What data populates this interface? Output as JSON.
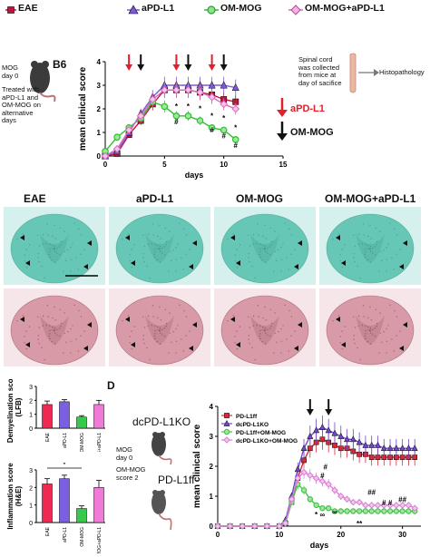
{
  "legend_a": [
    {
      "label": "EAE",
      "color": "#c0143c",
      "marker": "square"
    },
    {
      "label": "aPD-L1",
      "color": "#7b5cd6",
      "marker": "triangle"
    },
    {
      "label": "OM-MOG",
      "color": "#2fbf2f",
      "marker": "circle"
    },
    {
      "label": "OM-MOG+aPD-L1",
      "color": "#d86ab8",
      "marker": "diamond"
    }
  ],
  "schema_a": {
    "mouse_label": "B6",
    "lines": [
      "MOG",
      "day 0",
      "",
      "Treated with",
      "aPD-L1 and",
      "OM-MOG on",
      "alternative",
      "days"
    ]
  },
  "arrow_legend": {
    "apdl1": "aPD-L1",
    "ommog": "OM-MOG"
  },
  "spinal_note": {
    "lines": [
      "Spinal cord",
      "was collected",
      "from mice at",
      "day of sacifice"
    ],
    "target": "Histopathology"
  },
  "histo_labels": [
    "EAE",
    "aPD-L1",
    "OM-MOG",
    "OM-MOG+aPD-L1"
  ],
  "bar_charts": [
    {
      "ylabel": [
        "Demyelination score",
        "(LFB)"
      ],
      "categories": [
        "EAE",
        "aPD-L1",
        "OM-MOG",
        "OM-MOG+aPD-L1"
      ],
      "values": [
        1.7,
        1.9,
        0.8,
        1.7
      ],
      "errors": [
        0.25,
        0.15,
        0.1,
        0.3
      ],
      "yticks": [
        "0",
        "1",
        "2",
        "3"
      ],
      "colors": [
        "#ee2a53",
        "#7a5fe0",
        "#36c94c",
        "#f07ad8"
      ],
      "star": ""
    },
    {
      "ylabel": [
        "Inflammation score",
        "(H&E)"
      ],
      "categories": [
        "EAE",
        "aPD-L1",
        "OM-MOG",
        "OM-MOG+aPD-L1"
      ],
      "values": [
        2.2,
        2.5,
        0.8,
        2.0
      ],
      "errors": [
        0.3,
        0.2,
        0.15,
        0.4
      ],
      "yticks": [
        "0",
        "1",
        "2",
        "3"
      ],
      "colors": [
        "#ee2a53",
        "#7a5fe0",
        "#36c94c",
        "#f07ad8"
      ],
      "star": "*"
    }
  ],
  "panel_d": {
    "panel_letter": "D",
    "mouse_top": "dcPD-L1KO",
    "mouse_bottom": "PD-L1ff",
    "notes": [
      "MOG",
      "day 0",
      "",
      "OM-MOG",
      "score 2"
    ],
    "legend": [
      {
        "label": "PD-L1ff",
        "color": "#d62a3a",
        "marker": "square"
      },
      {
        "label": "dcPD-L1KO",
        "color": "#6f49c9",
        "marker": "triangle"
      },
      {
        "label": "PD-L1ff+OM-MOG",
        "color": "#44c24a",
        "marker": "circle"
      },
      {
        "label": "dcPD-L1KO+OM-MOG",
        "color": "#d77fd4",
        "marker": "diamond"
      }
    ]
  },
  "chart_data": [
    {
      "type": "line",
      "title": "",
      "xlabel": "days",
      "ylabel": "mean clinical score",
      "xlim": [
        0,
        15
      ],
      "ylim": [
        0,
        4
      ],
      "xticks": [
        0,
        5,
        10,
        15
      ],
      "yticks": [
        0,
        1,
        2,
        3,
        4
      ],
      "x": [
        0,
        1,
        2,
        3,
        4,
        5,
        6,
        7,
        8,
        9,
        10,
        11
      ],
      "series": [
        {
          "name": "EAE",
          "color": "#c0143c",
          "marker": "square",
          "values": [
            0,
            0.1,
            0.9,
            1.5,
            2.2,
            2.8,
            2.8,
            2.8,
            2.7,
            2.6,
            2.4,
            2.3
          ]
        },
        {
          "name": "aPD-L1",
          "color": "#7b5cd6",
          "marker": "triangle",
          "values": [
            0,
            0.2,
            1.0,
            1.8,
            2.5,
            3.0,
            3.0,
            3.0,
            3.0,
            3.0,
            3.0,
            2.9
          ]
        },
        {
          "name": "OM-MOG",
          "color": "#2fbf2f",
          "marker": "circle",
          "values": [
            0.2,
            0.8,
            1.2,
            1.6,
            2.3,
            2.1,
            1.7,
            1.7,
            1.5,
            1.2,
            1.1,
            0.7
          ]
        },
        {
          "name": "OM-MOG+aPD-L1",
          "color": "#d86ab8",
          "marker": "diamond",
          "values": [
            0,
            0.3,
            1.1,
            1.7,
            2.4,
            2.8,
            2.8,
            2.8,
            2.7,
            2.5,
            2.2,
            2.0
          ]
        }
      ],
      "arrows_red": [
        2,
        6,
        9
      ],
      "arrows_black": [
        3,
        7,
        10
      ],
      "annotations": [
        {
          "x": 6,
          "y": 2.0,
          "text": "*"
        },
        {
          "x": 6,
          "y": 1.35,
          "text": "#"
        },
        {
          "x": 7,
          "y": 2.0,
          "text": "*"
        },
        {
          "x": 8,
          "y": 1.9,
          "text": "*"
        },
        {
          "x": 9,
          "y": 1.6,
          "text": "*"
        },
        {
          "x": 9,
          "y": 1.0,
          "text": "#"
        },
        {
          "x": 10,
          "y": 1.5,
          "text": "*"
        },
        {
          "x": 10,
          "y": 0.75,
          "text": "#"
        },
        {
          "x": 11,
          "y": 1.1,
          "text": "*"
        },
        {
          "x": 11,
          "y": 0.35,
          "text": "#"
        }
      ]
    },
    {
      "type": "line",
      "title": "",
      "xlabel": "days",
      "ylabel": "mean clinical score",
      "xlim": [
        0,
        33
      ],
      "ylim": [
        0,
        4
      ],
      "xticks": [
        0,
        10,
        20,
        30
      ],
      "yticks": [
        0,
        1,
        2,
        3,
        4
      ],
      "x": [
        0,
        2,
        4,
        6,
        8,
        10,
        11,
        12,
        13,
        14,
        15,
        16,
        17,
        18,
        19,
        20,
        21,
        22,
        23,
        24,
        25,
        26,
        27,
        28,
        29,
        30,
        31,
        32
      ],
      "series": [
        {
          "name": "PD-L1ff",
          "color": "#d62a3a",
          "marker": "square",
          "values": [
            0,
            0,
            0,
            0,
            0,
            0,
            0.1,
            0.8,
            1.6,
            2.2,
            2.6,
            2.8,
            2.9,
            2.8,
            2.7,
            2.6,
            2.6,
            2.5,
            2.4,
            2.4,
            2.3,
            2.3,
            2.3,
            2.3,
            2.3,
            2.3,
            2.3,
            2.3
          ]
        },
        {
          "name": "dcPD-L1KO",
          "color": "#6f49c9",
          "marker": "triangle",
          "values": [
            0,
            0,
            0,
            0,
            0,
            0,
            0.2,
            1.0,
            1.9,
            2.6,
            3.0,
            3.2,
            3.3,
            3.2,
            3.1,
            3.0,
            2.9,
            2.9,
            2.8,
            2.7,
            2.7,
            2.7,
            2.6,
            2.6,
            2.6,
            2.6,
            2.6,
            2.6
          ]
        },
        {
          "name": "PD-L1ff+OM-MOG",
          "color": "#44c24a",
          "marker": "circle",
          "values": [
            0,
            0,
            0,
            0,
            0,
            0,
            0.1,
            0.8,
            1.4,
            1.2,
            0.9,
            0.7,
            0.6,
            0.6,
            0.5,
            0.5,
            0.5,
            0.5,
            0.5,
            0.5,
            0.5,
            0.5,
            0.5,
            0.5,
            0.5,
            0.5,
            0.5,
            0.5
          ]
        },
        {
          "name": "dcPD-L1KO+OM-MOG",
          "color": "#d77fd4",
          "marker": "diamond",
          "values": [
            0,
            0,
            0,
            0,
            0,
            0,
            0.1,
            0.9,
            1.6,
            1.8,
            1.7,
            1.6,
            1.5,
            1.4,
            1.2,
            1.0,
            0.9,
            0.8,
            0.8,
            0.7,
            0.7,
            0.7,
            0.7,
            0.7,
            0.7,
            0.7,
            0.7,
            0.6
          ]
        }
      ],
      "arrows_black": [
        15,
        18
      ],
      "annotations": [
        {
          "x": 17,
          "y": 1.6,
          "text": "#"
        },
        {
          "x": 17.5,
          "y": 1.9,
          "text": "#"
        },
        {
          "x": 16,
          "y": 0.3,
          "text": "*"
        },
        {
          "x": 17,
          "y": 0.3,
          "text": "∞"
        },
        {
          "x": 19,
          "y": 0.4,
          "text": "∞"
        },
        {
          "x": 23,
          "y": 0.0,
          "text": "**"
        },
        {
          "x": 25,
          "y": 1.05,
          "text": "##"
        },
        {
          "x": 27,
          "y": 0.7,
          "text": "#"
        },
        {
          "x": 28,
          "y": 0.7,
          "text": "#"
        },
        {
          "x": 30,
          "y": 0.8,
          "text": "##"
        }
      ]
    }
  ]
}
